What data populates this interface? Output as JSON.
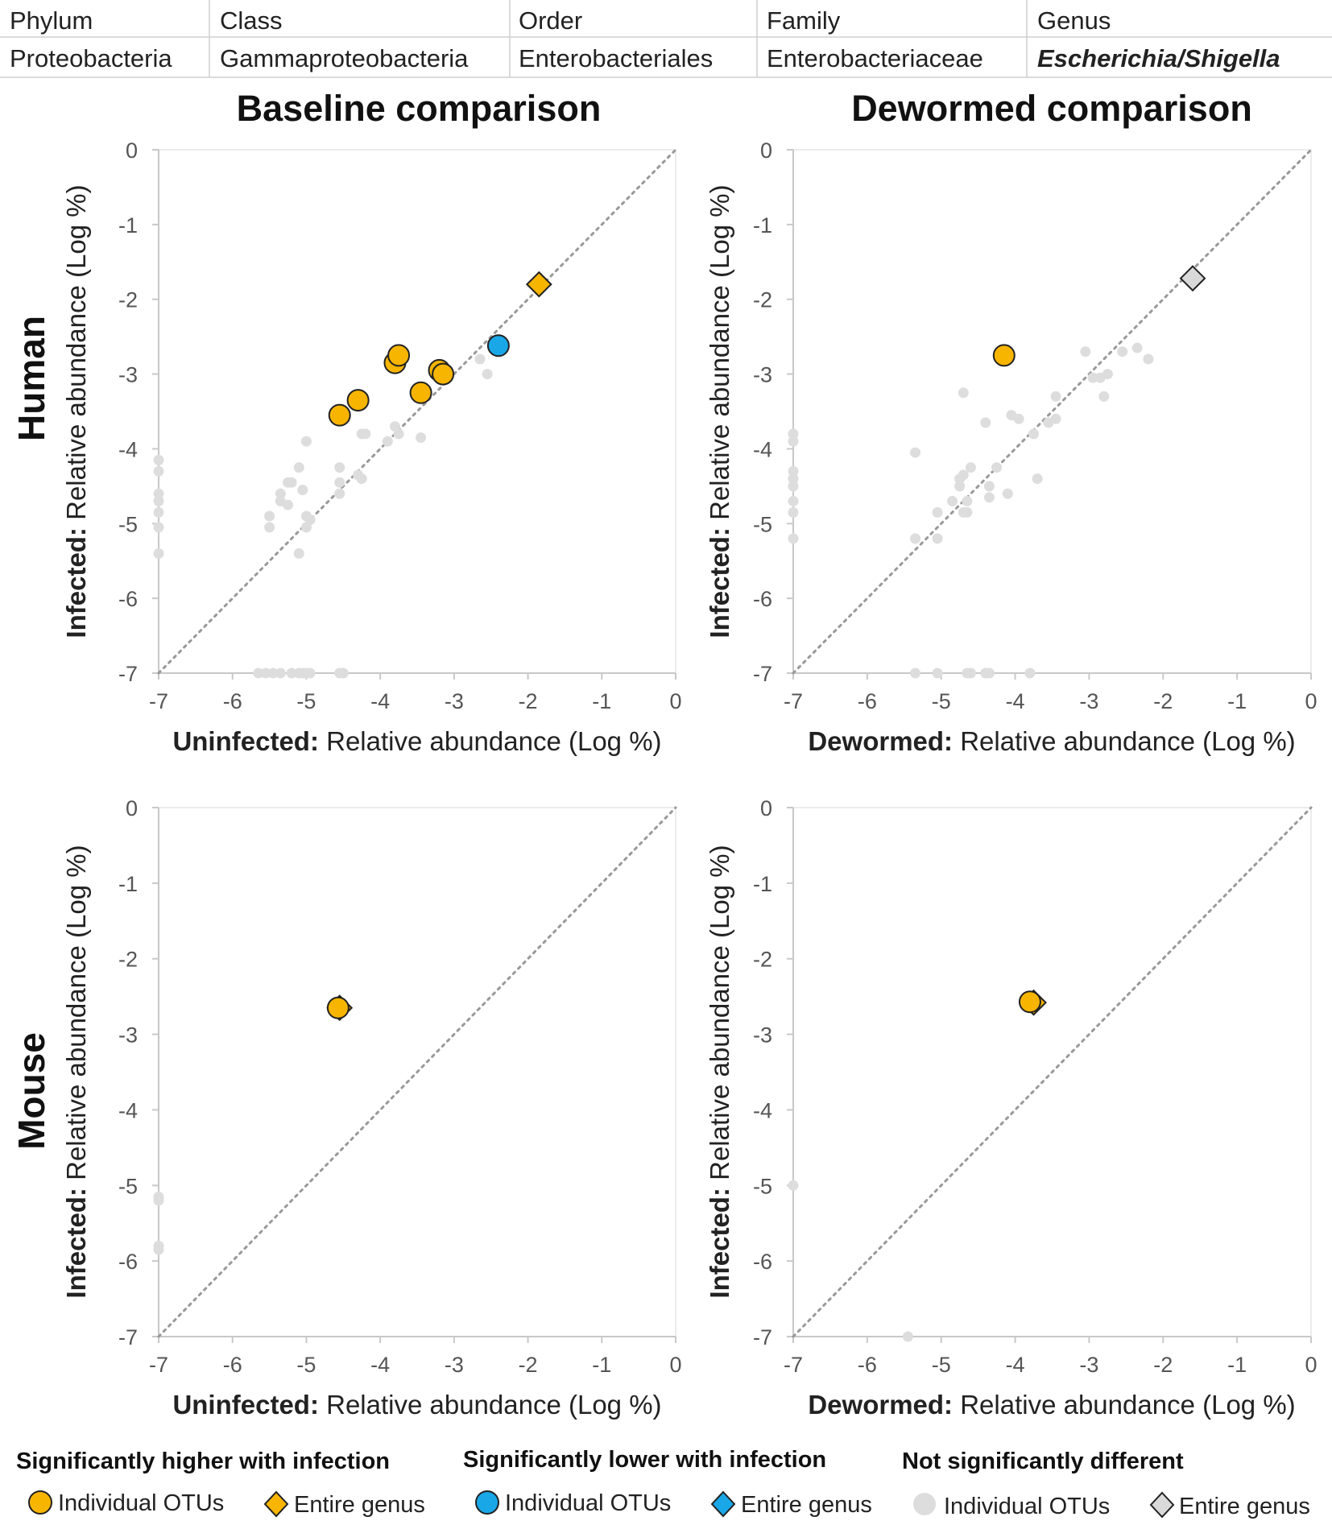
{
  "taxonomy": {
    "headers": [
      "Phylum",
      "Class",
      "Order",
      "Family",
      "Genus"
    ],
    "values": [
      "Proteobacteria",
      "Gammaproteobacteria",
      "Enterobacteriales",
      "Enterobacteriaceae",
      "Escherichia/Shigella"
    ]
  },
  "column_titles": [
    "Baseline comparison",
    "Dewormed comparison"
  ],
  "row_labels": [
    "Human",
    "Mouse"
  ],
  "colors": {
    "higher": "#f7b500",
    "lower": "#1aa7e8",
    "notsig": "#dddddd",
    "notsig_genus": "#d9d9d9",
    "diagonal": "#999999",
    "axis": "#c8c8c8",
    "tick_text": "#555555",
    "outline": "#222222"
  },
  "legend": {
    "groups": [
      {
        "title": "Significantly higher with infection",
        "color": "#f7b500",
        "otu_label": "Individual OTUs",
        "genus_label": "Entire genus"
      },
      {
        "title": "Significantly lower with infection",
        "color": "#1aa7e8",
        "otu_label": "Individual OTUs",
        "genus_label": "Entire genus"
      },
      {
        "title": "Not significantly different",
        "color": "#dddddd",
        "otu_label": "Individual OTUs",
        "genus_label": "Entire genus"
      }
    ]
  },
  "chart_data": [
    {
      "id": "human-baseline",
      "type": "scatter",
      "title": "Baseline comparison",
      "row": "Human",
      "xlabel_bold": "Uninfected:",
      "xlabel_rest": " Relative abundance (Log %)",
      "ylabel_bold": "Infected:",
      "ylabel_rest": " Relative abundance (Log %)",
      "xlim": [
        -7,
        0
      ],
      "ylim": [
        -7,
        0
      ],
      "ticks": [
        -7,
        -6,
        -5,
        -4,
        -3,
        -2,
        -1,
        0
      ],
      "diagonal": true,
      "series": [
        {
          "name": "Not significantly different - Individual OTUs",
          "category": "notsig",
          "marker": "small-circle",
          "points": [
            [
              -7,
              -4.15
            ],
            [
              -7,
              -4.3
            ],
            [
              -7,
              -4.6
            ],
            [
              -7,
              -4.7
            ],
            [
              -7,
              -4.85
            ],
            [
              -7,
              -5.05
            ],
            [
              -7,
              -5.4
            ],
            [
              -5.5,
              -4.9
            ],
            [
              -5.5,
              -5.05
            ],
            [
              -5.35,
              -4.6
            ],
            [
              -5.35,
              -4.7
            ],
            [
              -5.25,
              -4.45
            ],
            [
              -5.2,
              -4.45
            ],
            [
              -5.25,
              -4.75
            ],
            [
              -5.1,
              -4.25
            ],
            [
              -5.05,
              -4.55
            ],
            [
              -5.0,
              -3.9
            ],
            [
              -5.0,
              -4.9
            ],
            [
              -5.0,
              -5.05
            ],
            [
              -4.95,
              -4.95
            ],
            [
              -5.1,
              -5.4
            ],
            [
              -4.55,
              -4.25
            ],
            [
              -4.55,
              -4.45
            ],
            [
              -4.55,
              -4.6
            ],
            [
              -4.3,
              -4.35
            ],
            [
              -4.25,
              -4.4
            ],
            [
              -4.25,
              -3.8
            ],
            [
              -4.2,
              -3.8
            ],
            [
              -3.9,
              -3.9
            ],
            [
              -3.8,
              -3.7
            ],
            [
              -3.75,
              -3.8
            ],
            [
              -3.45,
              -3.85
            ],
            [
              -2.65,
              -2.8
            ],
            [
              -2.55,
              -3.0
            ],
            [
              -5.65,
              -7
            ],
            [
              -5.55,
              -7
            ],
            [
              -5.45,
              -7
            ],
            [
              -5.35,
              -7
            ],
            [
              -5.2,
              -7
            ],
            [
              -5.1,
              -7
            ],
            [
              -5.05,
              -7
            ],
            [
              -5.0,
              -7
            ],
            [
              -4.95,
              -7
            ],
            [
              -4.55,
              -7
            ],
            [
              -4.5,
              -7
            ]
          ]
        },
        {
          "name": "Significantly higher with infection - Individual OTUs",
          "category": "higher",
          "marker": "circle",
          "points": [
            [
              -4.55,
              -3.55
            ],
            [
              -4.3,
              -3.35
            ],
            [
              -3.8,
              -2.85
            ],
            [
              -3.75,
              -2.75
            ],
            [
              -3.45,
              -3.25
            ],
            [
              -3.2,
              -2.95
            ],
            [
              -3.15,
              -3.0
            ]
          ]
        },
        {
          "name": "Significantly lower with infection - Individual OTUs",
          "category": "lower",
          "marker": "circle",
          "points": [
            [
              -2.4,
              -2.62
            ]
          ]
        },
        {
          "name": "Significantly higher with infection - Entire genus",
          "category": "higher",
          "marker": "diamond",
          "points": [
            [
              -1.85,
              -1.8
            ]
          ]
        }
      ]
    },
    {
      "id": "human-dewormed",
      "type": "scatter",
      "title": "Dewormed comparison",
      "row": "Human",
      "xlabel_bold": "Dewormed:",
      "xlabel_rest": " Relative abundance (Log %)",
      "ylabel_bold": "Infected:",
      "ylabel_rest": " Relative abundance (Log %)",
      "xlim": [
        -7,
        0
      ],
      "ylim": [
        -7,
        0
      ],
      "ticks": [
        -7,
        -6,
        -5,
        -4,
        -3,
        -2,
        -1,
        0
      ],
      "diagonal": true,
      "series": [
        {
          "name": "Not significantly different - Individual OTUs",
          "category": "notsig",
          "marker": "small-circle",
          "points": [
            [
              -7,
              -3.8
            ],
            [
              -7,
              -3.9
            ],
            [
              -7,
              -4.3
            ],
            [
              -7,
              -4.4
            ],
            [
              -7,
              -4.5
            ],
            [
              -7,
              -4.7
            ],
            [
              -7,
              -4.85
            ],
            [
              -7,
              -5.2
            ],
            [
              -5.35,
              -4.05
            ],
            [
              -5.35,
              -5.2
            ],
            [
              -5.05,
              -4.85
            ],
            [
              -5.05,
              -5.2
            ],
            [
              -4.85,
              -4.7
            ],
            [
              -4.75,
              -4.5
            ],
            [
              -4.75,
              -4.4
            ],
            [
              -4.7,
              -4.35
            ],
            [
              -4.7,
              -4.85
            ],
            [
              -4.65,
              -4.85
            ],
            [
              -4.65,
              -4.7
            ],
            [
              -4.6,
              -4.25
            ],
            [
              -4.7,
              -3.25
            ],
            [
              -4.4,
              -3.65
            ],
            [
              -4.35,
              -4.5
            ],
            [
              -4.35,
              -4.65
            ],
            [
              -4.25,
              -4.25
            ],
            [
              -4.1,
              -4.6
            ],
            [
              -4.05,
              -3.55
            ],
            [
              -3.95,
              -3.6
            ],
            [
              -3.75,
              -3.8
            ],
            [
              -3.7,
              -4.4
            ],
            [
              -3.55,
              -3.65
            ],
            [
              -3.45,
              -3.6
            ],
            [
              -3.45,
              -3.3
            ],
            [
              -3.05,
              -2.7
            ],
            [
              -2.95,
              -3.05
            ],
            [
              -2.85,
              -3.05
            ],
            [
              -2.8,
              -3.3
            ],
            [
              -2.75,
              -3.0
            ],
            [
              -2.55,
              -2.7
            ],
            [
              -2.35,
              -2.65
            ],
            [
              -2.2,
              -2.8
            ],
            [
              -5.35,
              -7
            ],
            [
              -5.05,
              -7
            ],
            [
              -4.65,
              -7
            ],
            [
              -4.6,
              -7
            ],
            [
              -4.4,
              -7
            ],
            [
              -4.35,
              -7
            ],
            [
              -3.8,
              -7
            ]
          ]
        },
        {
          "name": "Significantly higher with infection - Individual OTUs",
          "category": "higher",
          "marker": "circle",
          "points": [
            [
              -4.15,
              -2.75
            ]
          ]
        },
        {
          "name": "Not significantly different - Entire genus",
          "category": "notsig_genus",
          "marker": "diamond",
          "points": [
            [
              -1.6,
              -1.72
            ]
          ]
        }
      ]
    },
    {
      "id": "mouse-baseline",
      "type": "scatter",
      "title": "",
      "row": "Mouse",
      "xlabel_bold": "Uninfected:",
      "xlabel_rest": " Relative abundance (Log %)",
      "ylabel_bold": "Infected:",
      "ylabel_rest": " Relative abundance (Log %)",
      "xlim": [
        -7,
        0
      ],
      "ylim": [
        -7,
        0
      ],
      "ticks": [
        -7,
        -6,
        -5,
        -4,
        -3,
        -2,
        -1,
        0
      ],
      "diagonal": true,
      "series": [
        {
          "name": "Not significantly different - Individual OTUs",
          "category": "notsig",
          "marker": "small-circle",
          "points": [
            [
              -7,
              -5.15
            ],
            [
              -7,
              -5.2
            ],
            [
              -7,
              -5.8
            ],
            [
              -7,
              -5.85
            ]
          ]
        },
        {
          "name": "Significantly higher with infection - Entire genus",
          "category": "higher",
          "marker": "diamond",
          "points": [
            [
              -4.55,
              -2.65
            ]
          ]
        },
        {
          "name": "Significantly higher with infection - Individual OTUs",
          "category": "higher",
          "marker": "circle",
          "points": [
            [
              -4.57,
              -2.65
            ]
          ]
        }
      ]
    },
    {
      "id": "mouse-dewormed",
      "type": "scatter",
      "title": "",
      "row": "Mouse",
      "xlabel_bold": "Dewormed:",
      "xlabel_rest": " Relative abundance (Log %)",
      "ylabel_bold": "Infected:",
      "ylabel_rest": " Relative abundance (Log %)",
      "xlim": [
        -7,
        0
      ],
      "ylim": [
        -7,
        0
      ],
      "ticks": [
        -7,
        -6,
        -5,
        -4,
        -3,
        -2,
        -1,
        0
      ],
      "diagonal": true,
      "series": [
        {
          "name": "Not significantly different - Individual OTUs",
          "category": "notsig",
          "marker": "small-circle",
          "points": [
            [
              -7,
              -5.0
            ],
            [
              -5.45,
              -7
            ]
          ]
        },
        {
          "name": "Significantly higher with infection - Entire genus",
          "category": "higher",
          "marker": "diamond",
          "points": [
            [
              -3.75,
              -2.58
            ]
          ]
        },
        {
          "name": "Significantly higher with infection - Individual OTUs",
          "category": "higher",
          "marker": "circle",
          "points": [
            [
              -3.8,
              -2.57
            ]
          ]
        }
      ]
    }
  ]
}
